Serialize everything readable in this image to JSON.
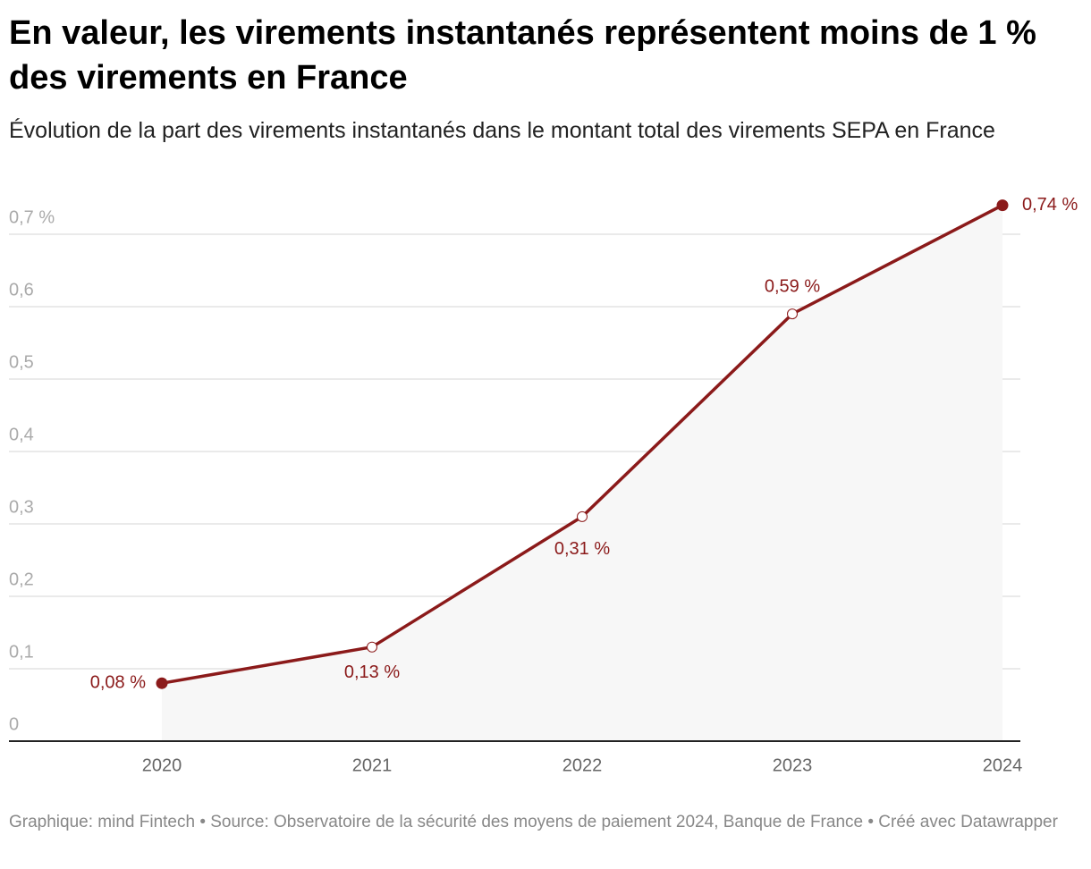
{
  "chart_data": {
    "type": "line",
    "title": "En valeur, les virements instantanés représentent moins de 1 % des virements en France",
    "subtitle": "Évolution de la part des virements instantanés dans le montant total des virements SEPA en France",
    "footer": "Graphique: mind Fintech • Source: Observatoire de la sécurité des moyens de paiement 2024, Banque de France • Créé avec Datawrapper",
    "categories": [
      "2020",
      "2021",
      "2022",
      "2023",
      "2024"
    ],
    "values": [
      0.08,
      0.13,
      0.31,
      0.59,
      0.74
    ],
    "value_labels": [
      "0,08 %",
      "0,13 %",
      "0,31 %",
      "0,59 %",
      "0,74 %"
    ],
    "color": "#8b1a1a",
    "ylim": [
      0,
      0.75
    ],
    "yticks": [
      0,
      {
        "value": 0.1,
        "label": "0,1"
      },
      {
        "value": 0.2,
        "label": "0,2"
      },
      {
        "value": 0.3,
        "label": "0,3"
      },
      {
        "value": 0.4,
        "label": "0,4"
      },
      {
        "value": 0.5,
        "label": "0,5"
      },
      {
        "value": 0.6,
        "label": "0,6"
      },
      {
        "value": 0.7,
        "label": "0,7 %"
      }
    ],
    "grid": true
  }
}
